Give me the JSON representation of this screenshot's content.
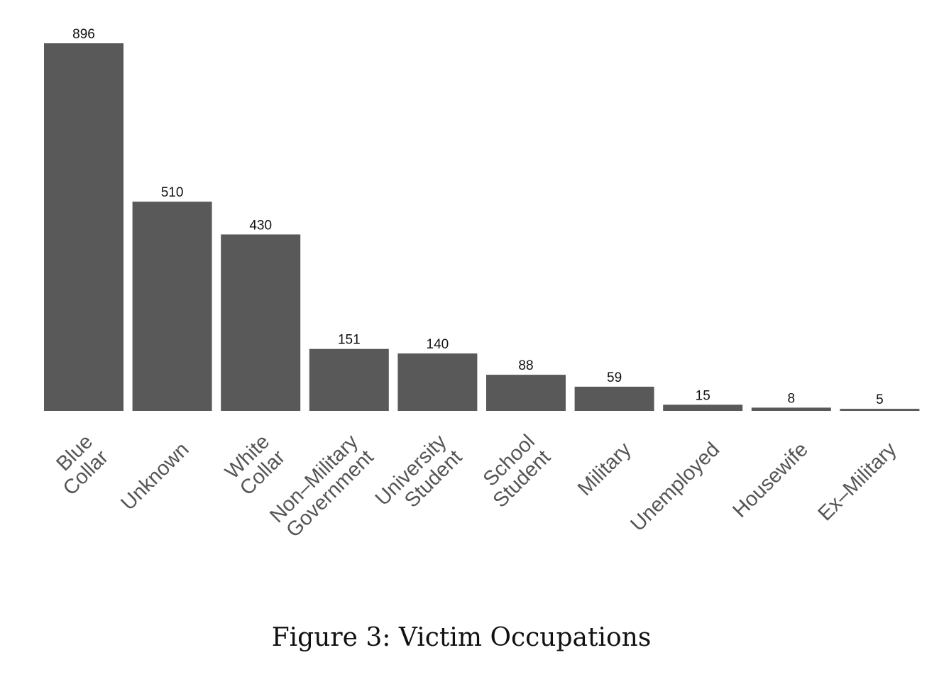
{
  "chart_data": {
    "type": "bar",
    "categories": [
      [
        "Blue",
        "Collar"
      ],
      [
        "Unknown"
      ],
      [
        "White",
        "Collar"
      ],
      [
        "Non–Military",
        "Government"
      ],
      [
        "University",
        "Student"
      ],
      [
        "School",
        "Student"
      ],
      [
        "Military"
      ],
      [
        "Unemployed"
      ],
      [
        "Housewife"
      ],
      [
        "Ex–Military"
      ]
    ],
    "values": [
      896,
      510,
      430,
      151,
      140,
      88,
      59,
      15,
      8,
      5
    ],
    "title": "",
    "xlabel": "",
    "ylabel": "",
    "ylim": [
      0,
      896
    ],
    "grid": false,
    "legend": "none",
    "colors": {
      "bar": "#595959",
      "data_label": "#111111",
      "tick_label": "#555555"
    }
  },
  "caption": "Figure 3: Victim Occupations"
}
